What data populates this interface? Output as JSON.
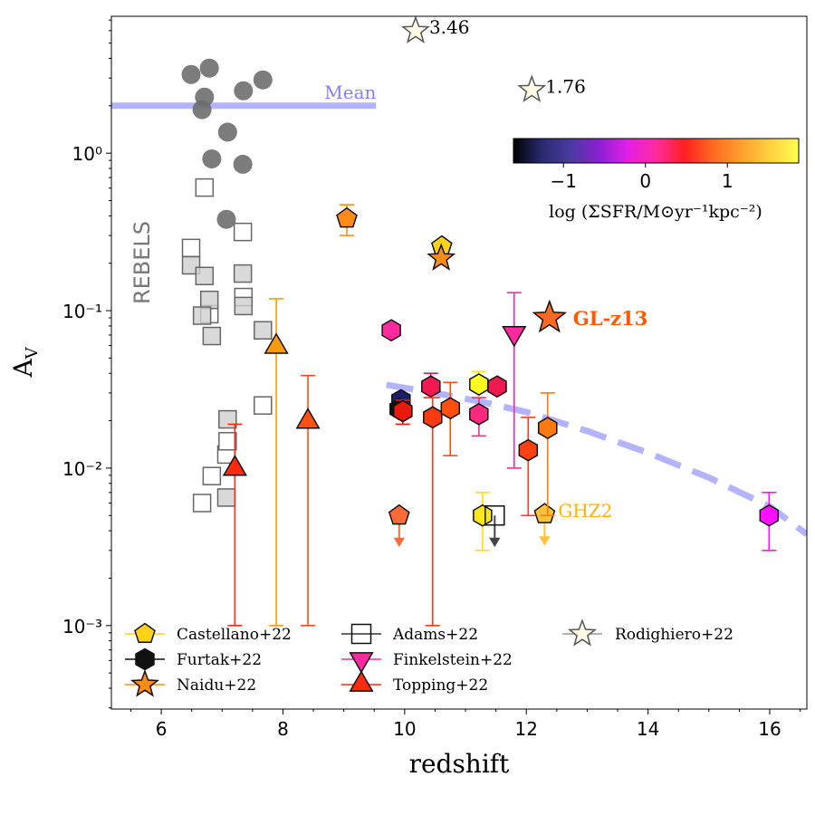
{
  "chart_data": {
    "type": "scatter",
    "xlabel": "redshift",
    "ylabel": "A_V",
    "xlim": [
      5.18,
      16.61
    ],
    "ylim": [
      0.000295,
      7.4
    ],
    "yscale": "log",
    "grid": false,
    "xticks": [
      6,
      8,
      10,
      12,
      14,
      16
    ],
    "xtick_labels": [
      "6",
      "8",
      "10",
      "12",
      "14",
      "16"
    ],
    "yticks": [
      0.001,
      0.01,
      0.1,
      1
    ],
    "ytick_labels": [
      "10⁻³",
      "10⁻²",
      "10⁻¹",
      "10⁰"
    ],
    "rebels_label": "REBELS",
    "mean_line": {
      "label": "Mean",
      "y": 2.0,
      "x_range": [
        5.18,
        9.53
      ],
      "color": "#b3b3ff"
    },
    "model_curve": {
      "color": "#b3b3ff",
      "style": "dashed",
      "points": [
        [
          9.7,
          0.0338
        ],
        [
          10.5,
          0.03
        ],
        [
          11.3,
          0.0262
        ],
        [
          12,
          0.0227
        ],
        [
          13,
          0.0172
        ],
        [
          14,
          0.0125
        ],
        [
          15,
          0.0087
        ],
        [
          16,
          0.0057
        ],
        [
          16.61,
          0.0038
        ]
      ]
    },
    "colorbar": {
      "label": "log (ΣSFR/M⊙yr⁻¹kpc⁻²)",
      "range": [
        -1.61,
        1.87
      ],
      "ticks": [
        -1,
        0,
        1
      ],
      "tick_labels": [
        "−1",
        "0",
        "1"
      ],
      "colors": [
        "#000000",
        "#2a2a70",
        "#4a3aa0",
        "#8a20d0",
        "#e020e8",
        "#ff2aa0",
        "#ff2020",
        "#ff6a20",
        "#ffa030",
        "#ffd040",
        "#ffff50"
      ]
    },
    "rebels_detections": [
      [
        6.49,
        3.16
      ],
      [
        6.79,
        3.47
      ],
      [
        6.71,
        2.27
      ],
      [
        7.35,
        2.49
      ],
      [
        7.67,
        2.92
      ],
      [
        6.67,
        1.89
      ],
      [
        7.09,
        1.36
      ],
      [
        6.83,
        0.92
      ],
      [
        7.34,
        0.85
      ],
      [
        7.07,
        0.38
      ]
    ],
    "rebels_limits_open": [
      [
        6.71,
        0.605
      ],
      [
        7.34,
        0.316
      ],
      [
        6.49,
        0.25
      ],
      [
        7.35,
        0.122
      ],
      [
        6.79,
        0.095
      ],
      [
        7.07,
        0.0122
      ],
      [
        7.09,
        0.0148
      ],
      [
        7.67,
        0.025
      ],
      [
        6.83,
        0.0089
      ],
      [
        6.67,
        0.006
      ]
    ],
    "rebels_limits_filled": [
      [
        6.49,
        0.194
      ],
      [
        6.71,
        0.166
      ],
      [
        6.79,
        0.117
      ],
      [
        7.34,
        0.172
      ],
      [
        7.35,
        0.107
      ],
      [
        6.67,
        0.093
      ],
      [
        6.83,
        0.069
      ],
      [
        7.67,
        0.075
      ],
      [
        7.09,
        0.0204
      ],
      [
        7.07,
        0.0065
      ]
    ],
    "points": [
      {
        "marker": "pentagon",
        "x": 9.05,
        "y": 0.385,
        "err": [
          0.3,
          0.47
        ],
        "color": "#ff8c1a"
      },
      {
        "marker": "pentagon",
        "x": 10.61,
        "y": 0.256,
        "color": "#ffd21a"
      },
      {
        "marker": "star",
        "x": 10.6,
        "y": 0.215,
        "color": "#ff8c1a"
      },
      {
        "marker": "star",
        "x": 12.38,
        "y": 0.09,
        "color": "#ff6a20",
        "label": "GL-z13",
        "label_color": "#ff5a00"
      },
      {
        "marker": "pentagon",
        "x": 12.3,
        "y": 0.0051,
        "color": "#ffc23a",
        "upper": true,
        "label": "GHZ2",
        "label_color": "#ffb000"
      },
      {
        "marker": "pentagon",
        "x": 9.91,
        "y": 0.005,
        "color": "#ff6a3a",
        "upper": true
      },
      {
        "marker": "hexagon",
        "x": 9.78,
        "y": 0.075,
        "color": "#ff2aa0"
      },
      {
        "marker": "hexagon",
        "x": 9.94,
        "y": 0.027,
        "color": "#1e1e66"
      },
      {
        "marker": "hexagon",
        "x": 9.91,
        "y": 0.0237,
        "color": "#111111"
      },
      {
        "marker": "hexagon",
        "x": 9.97,
        "y": 0.023,
        "err": [
          0.019,
          0.027
        ],
        "color": "#e81a0a"
      },
      {
        "marker": "hexagon",
        "x": 10.43,
        "y": 0.033,
        "err": [
          0.028,
          0.04
        ],
        "color": "#f01a50"
      },
      {
        "marker": "hexagon",
        "x": 10.46,
        "y": 0.021,
        "err": [
          0.001,
          0.028
        ],
        "color": "#ff3a10"
      },
      {
        "marker": "hexagon",
        "x": 10.75,
        "y": 0.024,
        "err": [
          0.012,
          0.035
        ],
        "color": "#ff5010"
      },
      {
        "marker": "hexagon",
        "x": 11.22,
        "y": 0.034,
        "err": [
          0.028,
          0.041
        ],
        "color": "#ffff20"
      },
      {
        "marker": "hexagon",
        "x": 11.52,
        "y": 0.033,
        "color": "#f01a50"
      },
      {
        "marker": "hexagon",
        "x": 11.22,
        "y": 0.022,
        "err": [
          0.016,
          0.028
        ],
        "color": "#ff2a80"
      },
      {
        "marker": "hexagon",
        "x": 12.03,
        "y": 0.013,
        "err": [
          0.005,
          0.021
        ],
        "color": "#ff4010"
      },
      {
        "marker": "hexagon",
        "x": 12.35,
        "y": 0.018,
        "err": [
          0.005,
          0.03
        ],
        "color": "#ff7a10"
      },
      {
        "marker": "hexagon",
        "x": 15.99,
        "y": 0.005,
        "err": [
          0.003,
          0.007
        ],
        "color": "#ff10ff"
      },
      {
        "marker": "hexagon",
        "x": 11.28,
        "y": 0.005,
        "err": [
          0.003,
          0.007
        ],
        "color": "#ffe81a"
      },
      {
        "marker": "square",
        "x": 11.48,
        "y": 0.005,
        "color": "none",
        "upper": true
      },
      {
        "marker": "tri-down",
        "x": 11.8,
        "y": 0.072,
        "err": [
          0.01,
          0.13
        ],
        "color": "#ff2aa0"
      },
      {
        "marker": "tri-up",
        "x": 7.21,
        "y": 0.0099,
        "err": [
          0.001,
          0.019
        ],
        "color": "#ff2a10"
      },
      {
        "marker": "tri-up",
        "x": 7.89,
        "y": 0.059,
        "err": [
          0.001,
          0.119
        ],
        "color": "#ff9a10"
      },
      {
        "marker": "tri-up",
        "x": 8.41,
        "y": 0.0197,
        "err": [
          0.001,
          0.0387
        ],
        "color": "#ff5010"
      },
      {
        "marker": "star",
        "x": 10.18,
        "y": 5.97,
        "color": "#fffbe6",
        "label": "3.46",
        "label_color": "#000000"
      },
      {
        "marker": "star",
        "x": 12.09,
        "y": 2.52,
        "color": "#fffbe6",
        "label": "1.76",
        "label_color": "#000000"
      }
    ],
    "legend": [
      {
        "label": "Castellano+22",
        "marker": "pentagon",
        "color": "#ffd21a"
      },
      {
        "label": "Furtak+22",
        "marker": "hexagon",
        "color": "#111111"
      },
      {
        "label": "Naidu+22",
        "marker": "star",
        "color": "#ff8c1a"
      },
      {
        "label": "Adams+22",
        "marker": "square",
        "color": "none"
      },
      {
        "label": "Finkelstein+22",
        "marker": "tri-down",
        "color": "#ff2aa0"
      },
      {
        "label": "Topping+22",
        "marker": "tri-up",
        "color": "#ff2a10"
      },
      {
        "label": "Rodighiero+22",
        "marker": "star",
        "color": "#fffbe6"
      }
    ]
  }
}
